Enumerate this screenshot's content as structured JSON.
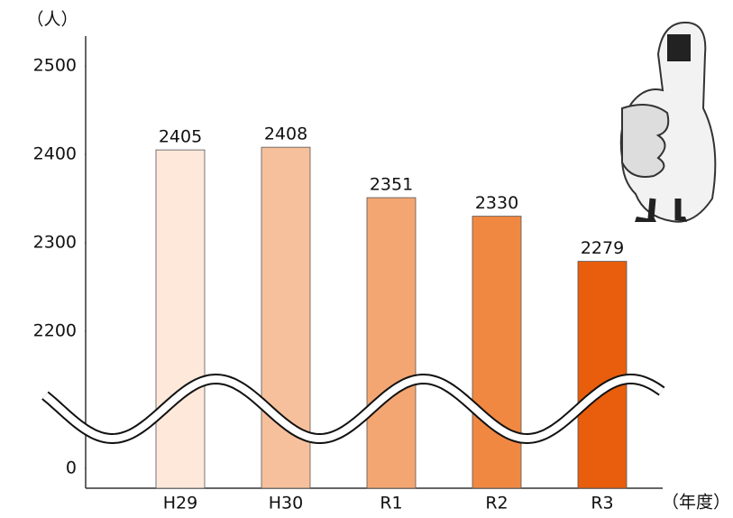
{
  "chart_data": {
    "type": "bar",
    "y_label": "（人）",
    "x_label": "（年度）",
    "categories": [
      "H29",
      "H30",
      "R1",
      "R2",
      "R3"
    ],
    "values": [
      2405,
      2408,
      2351,
      2330,
      2279
    ],
    "colors": [
      "#fde8da",
      "#f7c09c",
      "#f4a672",
      "#f08842",
      "#e85e0c"
    ],
    "ylim": [
      0,
      2500
    ],
    "yticks": [
      0,
      2200,
      2300,
      2400,
      2500
    ],
    "axis_break": true
  }
}
